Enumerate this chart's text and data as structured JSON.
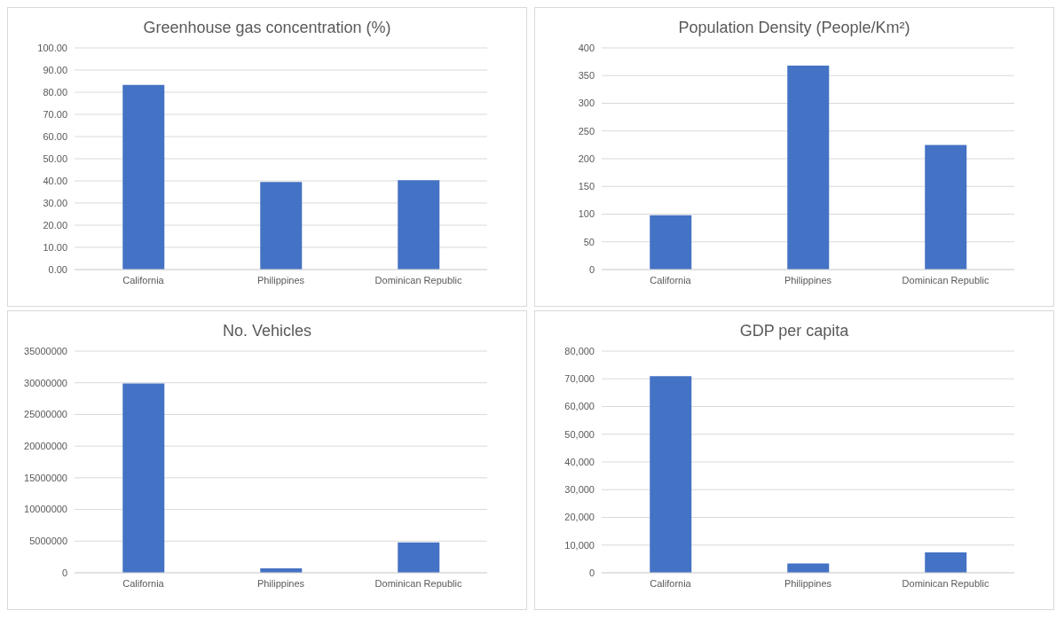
{
  "chart_data": [
    {
      "type": "bar",
      "title": "Greenhouse gas concentration (%)",
      "categories": [
        "California",
        "Philippines",
        "Dominican Republic"
      ],
      "values": [
        83.3,
        39.5,
        40.3
      ],
      "color": "#4472c4",
      "ylim": [
        0,
        100
      ],
      "yticks": [
        {
          "value": 0,
          "label": "0.00"
        },
        {
          "value": 10,
          "label": "10.00"
        },
        {
          "value": 20,
          "label": "20.00"
        },
        {
          "value": 30,
          "label": "30.00"
        },
        {
          "value": 40,
          "label": "40.00"
        },
        {
          "value": 50,
          "label": "50.00"
        },
        {
          "value": 60,
          "label": "60.00"
        },
        {
          "value": 70,
          "label": "70.00"
        },
        {
          "value": 80,
          "label": "80.00"
        },
        {
          "value": 90,
          "label": "90.00"
        },
        {
          "value": 100,
          "label": "100.00"
        }
      ],
      "grid": "y"
    },
    {
      "type": "bar",
      "title": "Population Density (People/Km²)",
      "categories": [
        "California",
        "Philippines",
        "Dominican Republic"
      ],
      "values": [
        98,
        368,
        225
      ],
      "color": "#4472c4",
      "ylim": [
        0,
        400
      ],
      "yticks": [
        0,
        50,
        100,
        150,
        200,
        250,
        300,
        350,
        400
      ],
      "grid": "y"
    },
    {
      "type": "bar",
      "title": "No. Vehicles",
      "categories": [
        "California",
        "Philippines",
        "Dominican Republic"
      ],
      "values": [
        29900000,
        700000,
        4800000
      ],
      "color": "#4472c4",
      "ylim": [
        0,
        35000000
      ],
      "yticks": [
        0,
        5000000,
        10000000,
        15000000,
        20000000,
        25000000,
        30000000,
        35000000
      ],
      "grid": "y"
    },
    {
      "type": "bar",
      "title": "GDP per capita",
      "categories": [
        "California",
        "Philippines",
        "Dominican Republic"
      ],
      "values": [
        71000,
        3400,
        7400
      ],
      "color": "#4472c4",
      "ylim": [
        0,
        80000
      ],
      "yticks": [
        0,
        {
          "value": 10000,
          "label": "10,000"
        },
        {
          "value": 20000,
          "label": "20,000"
        },
        {
          "value": 30000,
          "label": "30,000"
        },
        {
          "value": 40000,
          "label": "40,000"
        },
        {
          "value": 50000,
          "label": "50,000"
        },
        {
          "value": 60000,
          "label": "60,000"
        },
        {
          "value": 70000,
          "label": "70,000"
        },
        {
          "value": 80000,
          "label": "80,000"
        }
      ],
      "grid": "y"
    }
  ]
}
